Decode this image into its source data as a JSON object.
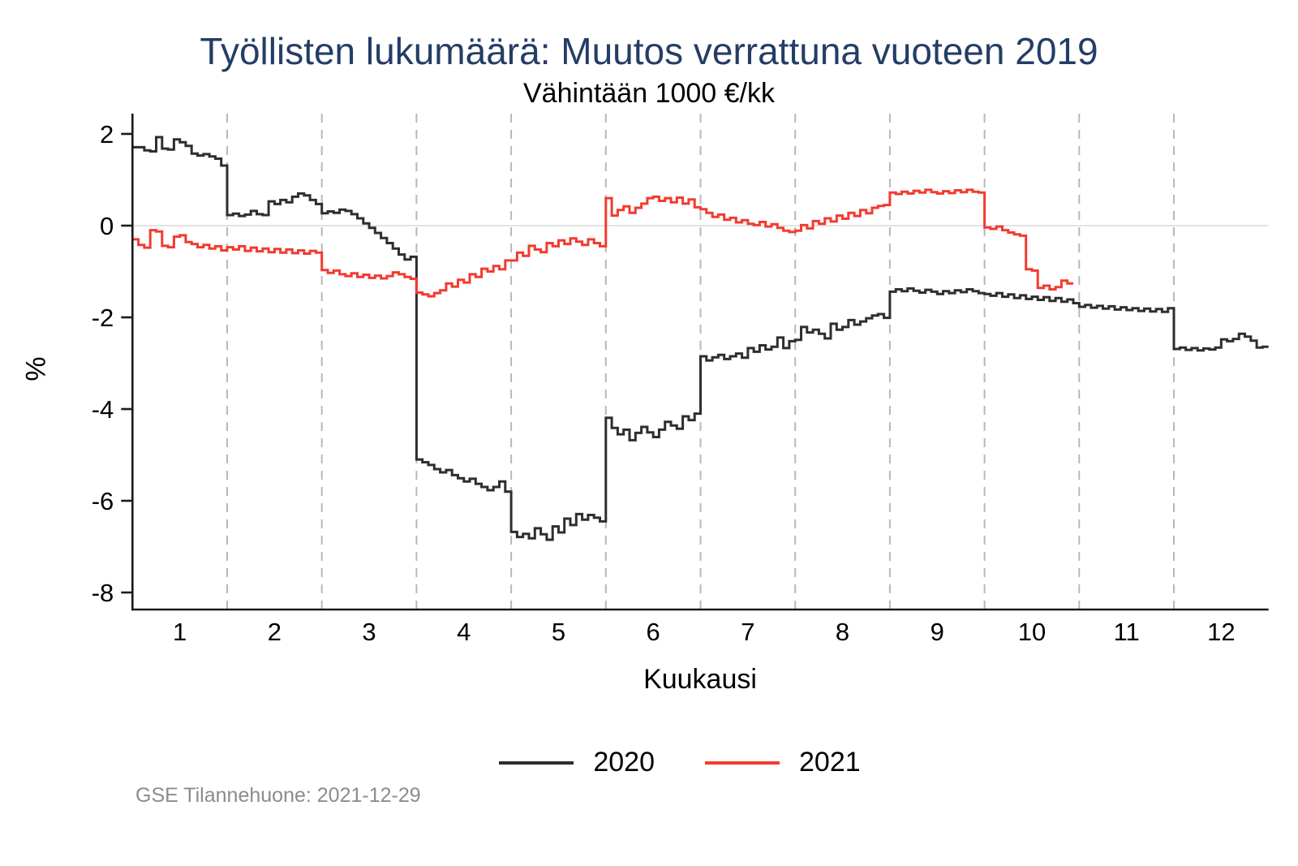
{
  "header": {
    "title": "Työllisten lukumäärä: Muutos verrattuna vuoteen 2019",
    "subtitle": "Vähintään 1000 €/kk"
  },
  "footer": {
    "source_note": "GSE Tilannehuone: 2021-12-29"
  },
  "legend": {
    "items": [
      {
        "label": "2020",
        "color": "#2e2e2e"
      },
      {
        "label": "2021",
        "color": "#f23b30"
      }
    ]
  },
  "chart_data": {
    "type": "line",
    "subtype": "step-daily",
    "title": "Työllisten lukumäärä: Muutos verrattuna vuoteen 2019",
    "subtitle": "Vähintään 1000 €/kk",
    "xlabel": "Kuukausi",
    "ylabel": "%",
    "x_ticks": [
      1,
      2,
      3,
      4,
      5,
      6,
      7,
      8,
      9,
      10,
      11,
      12
    ],
    "y_ticks": [
      2,
      0,
      -2,
      -4,
      -6,
      -8
    ],
    "x_range": [
      0.5,
      12.5
    ],
    "y_range": [
      -8.37,
      2.44
    ],
    "gridlines_x": [
      1.5,
      2.5,
      3.5,
      4.5,
      5.5,
      6.5,
      7.5,
      8.5,
      9.5,
      10.5,
      11.5
    ],
    "zero_line": true,
    "legend_position": "bottom-center",
    "points_per_month": 16,
    "colors": {
      "series_2020": "#2e2e2e",
      "series_2021": "#f23b30",
      "grid_dashed": "#b8b8b8",
      "zero_line": "#dcdcdc",
      "axis": "#1a1a1a",
      "title": "#253d66",
      "source_note": "#8c8c8c"
    },
    "series": [
      {
        "name": "2020",
        "color": "#2e2e2e",
        "start_month": 1,
        "monthly_values": [
          [
            1.71,
            1.71,
            1.64,
            1.62,
            1.93,
            1.68,
            1.66,
            1.88,
            1.82,
            1.74,
            1.57,
            1.53,
            1.56,
            1.51,
            1.46,
            1.31
          ],
          [
            0.23,
            0.26,
            0.21,
            0.24,
            0.32,
            0.25,
            0.23,
            0.53,
            0.47,
            0.56,
            0.51,
            0.63,
            0.7,
            0.66,
            0.56,
            0.47
          ],
          [
            0.27,
            0.31,
            0.28,
            0.35,
            0.32,
            0.25,
            0.16,
            0.05,
            -0.05,
            -0.16,
            -0.27,
            -0.38,
            -0.5,
            -0.63,
            -0.74,
            -0.68
          ],
          [
            -5.1,
            -5.16,
            -5.22,
            -5.31,
            -5.38,
            -5.33,
            -5.44,
            -5.51,
            -5.58,
            -5.52,
            -5.63,
            -5.7,
            -5.77,
            -5.7,
            -5.58,
            -5.8
          ],
          [
            -6.68,
            -6.79,
            -6.72,
            -6.82,
            -6.6,
            -6.73,
            -6.85,
            -6.56,
            -6.69,
            -6.39,
            -6.53,
            -6.29,
            -6.41,
            -6.31,
            -6.37,
            -6.45
          ],
          [
            -4.19,
            -4.41,
            -4.55,
            -4.45,
            -4.68,
            -4.52,
            -4.39,
            -4.51,
            -4.61,
            -4.45,
            -4.28,
            -4.36,
            -4.43,
            -4.16,
            -4.24,
            -4.1
          ],
          [
            -2.85,
            -2.94,
            -2.87,
            -2.82,
            -2.91,
            -2.85,
            -2.79,
            -2.88,
            -2.67,
            -2.75,
            -2.61,
            -2.7,
            -2.64,
            -2.44,
            -2.67,
            -2.52
          ],
          [
            -2.49,
            -2.21,
            -2.33,
            -2.27,
            -2.36,
            -2.46,
            -2.14,
            -2.27,
            -2.21,
            -2.06,
            -2.16,
            -2.09,
            -2.02,
            -1.96,
            -1.93,
            -2.01
          ],
          [
            -1.44,
            -1.39,
            -1.43,
            -1.37,
            -1.42,
            -1.46,
            -1.4,
            -1.44,
            -1.49,
            -1.43,
            -1.47,
            -1.41,
            -1.45,
            -1.39,
            -1.43,
            -1.47
          ],
          [
            -1.49,
            -1.53,
            -1.47,
            -1.55,
            -1.5,
            -1.58,
            -1.52,
            -1.6,
            -1.55,
            -1.62,
            -1.56,
            -1.64,
            -1.58,
            -1.66,
            -1.61,
            -1.69
          ],
          [
            -1.77,
            -1.73,
            -1.79,
            -1.75,
            -1.81,
            -1.76,
            -1.83,
            -1.78,
            -1.84,
            -1.8,
            -1.86,
            -1.81,
            -1.87,
            -1.82,
            -1.88,
            -1.8
          ],
          [
            -2.69,
            -2.66,
            -2.71,
            -2.67,
            -2.72,
            -2.68,
            -2.7,
            -2.66,
            -2.48,
            -2.52,
            -2.47,
            -2.36,
            -2.42,
            -2.51,
            -2.66,
            -2.64
          ]
        ]
      },
      {
        "name": "2021",
        "color": "#f23b30",
        "start_month": 1,
        "monthly_values": [
          [
            -0.3,
            -0.42,
            -0.48,
            -0.1,
            -0.13,
            -0.44,
            -0.47,
            -0.24,
            -0.21,
            -0.36,
            -0.4,
            -0.47,
            -0.42,
            -0.5,
            -0.45,
            -0.54
          ],
          [
            -0.47,
            -0.52,
            -0.45,
            -0.55,
            -0.48,
            -0.56,
            -0.5,
            -0.58,
            -0.51,
            -0.59,
            -0.52,
            -0.6,
            -0.54,
            -0.61,
            -0.55,
            -0.59
          ],
          [
            -0.97,
            -1.03,
            -0.98,
            -1.06,
            -1.1,
            -1.04,
            -1.12,
            -1.07,
            -1.14,
            -1.09,
            -1.15,
            -1.1,
            -1.02,
            -1.06,
            -1.12,
            -1.16
          ],
          [
            -1.46,
            -1.5,
            -1.54,
            -1.47,
            -1.41,
            -1.26,
            -1.33,
            -1.18,
            -1.24,
            -1.06,
            -1.12,
            -0.94,
            -1.0,
            -0.88,
            -0.95,
            -0.76
          ],
          [
            -0.76,
            -0.59,
            -0.66,
            -0.44,
            -0.52,
            -0.58,
            -0.38,
            -0.45,
            -0.32,
            -0.4,
            -0.28,
            -0.35,
            -0.42,
            -0.3,
            -0.38,
            -0.45
          ],
          [
            0.6,
            0.22,
            0.34,
            0.42,
            0.28,
            0.39,
            0.48,
            0.6,
            0.63,
            0.54,
            0.6,
            0.51,
            0.61,
            0.48,
            0.57,
            0.4
          ],
          [
            0.36,
            0.28,
            0.19,
            0.24,
            0.13,
            0.17,
            0.07,
            0.12,
            0.04,
            0.01,
            0.08,
            -0.02,
            0.03,
            -0.05,
            -0.11,
            -0.14
          ],
          [
            -0.11,
            0.01,
            -0.06,
            0.1,
            0.04,
            0.16,
            0.09,
            0.22,
            0.15,
            0.28,
            0.21,
            0.34,
            0.27,
            0.39,
            0.43,
            0.45
          ],
          [
            0.72,
            0.69,
            0.74,
            0.7,
            0.76,
            0.72,
            0.78,
            0.73,
            0.7,
            0.75,
            0.71,
            0.77,
            0.73,
            0.78,
            0.74,
            0.72
          ],
          [
            -0.04,
            -0.07,
            -0.02,
            -0.1,
            -0.15,
            -0.19,
            -0.22,
            -0.95,
            -0.98,
            -1.36,
            -1.31,
            -1.39,
            -1.34,
            -1.2,
            -1.26
          ]
        ]
      }
    ]
  }
}
